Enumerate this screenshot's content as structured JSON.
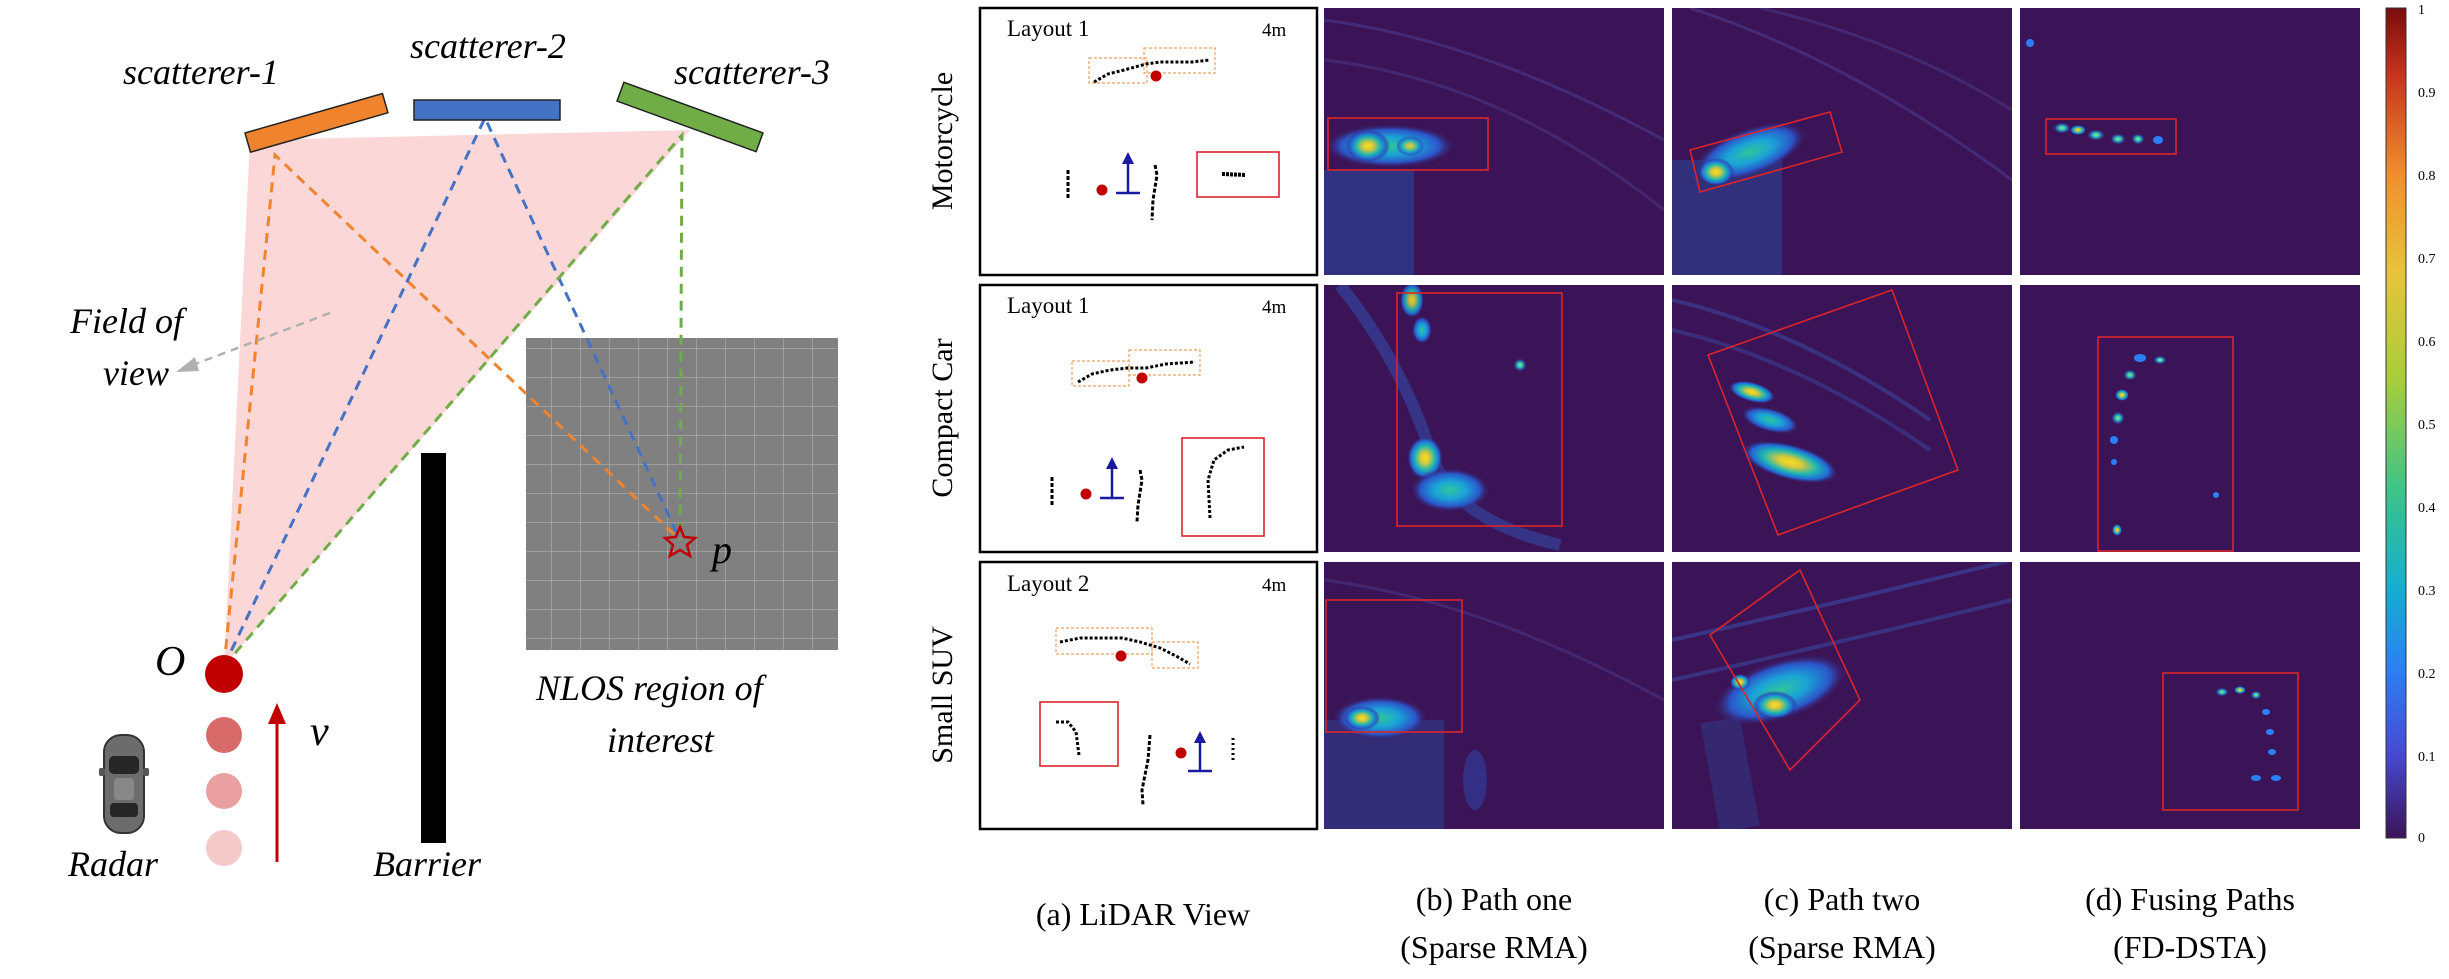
{
  "left": {
    "scatterers": [
      "scatterer-1",
      "scatterer-2",
      "scatterer-3"
    ],
    "fov_label": [
      "Field of",
      "view"
    ],
    "origin_label": "O",
    "target_label": "p",
    "velocity_label": "v",
    "radar_label": "Radar",
    "barrier_label": "Barrier",
    "nlos_label": [
      "NLOS region of",
      "interest"
    ]
  },
  "rows": [
    {
      "name": "Motorcycle",
      "layout": "Layout 1",
      "scale": "4m"
    },
    {
      "name": "Compact Car",
      "layout": "Layout 1",
      "scale": "4m"
    },
    {
      "name": "Small SUV",
      "layout": "Layout 2",
      "scale": "4m"
    }
  ],
  "columns": [
    [
      "(a) LiDAR View",
      ""
    ],
    [
      "(b) Path one",
      "(Sparse RMA)"
    ],
    [
      "(c) Path two",
      "(Sparse RMA)"
    ],
    [
      "(d) Fusing Paths",
      "(FD-DSTA)"
    ]
  ],
  "colorbar": {
    "ticks": [
      "1",
      "0.9",
      "0.8",
      "0.7",
      "0.6",
      "0.5",
      "0.4",
      "0.3",
      "0.2",
      "0.1",
      "0"
    ],
    "colormap": [
      "#fbf91a",
      "#f2b42e",
      "#d6c83a",
      "#9fca3a",
      "#4bc67a",
      "#18b8b6",
      "#0fa0e4",
      "#2a80f8",
      "#4a55e8",
      "#45289c",
      "#3c1754"
    ]
  },
  "colors": {
    "scatterer1": "#f0832e",
    "scatterer2": "#4472c4",
    "scatterer3": "#70ad47",
    "radar": "#c00000",
    "heatmap_bg": "#3b1457",
    "box": "#d9252a"
  }
}
